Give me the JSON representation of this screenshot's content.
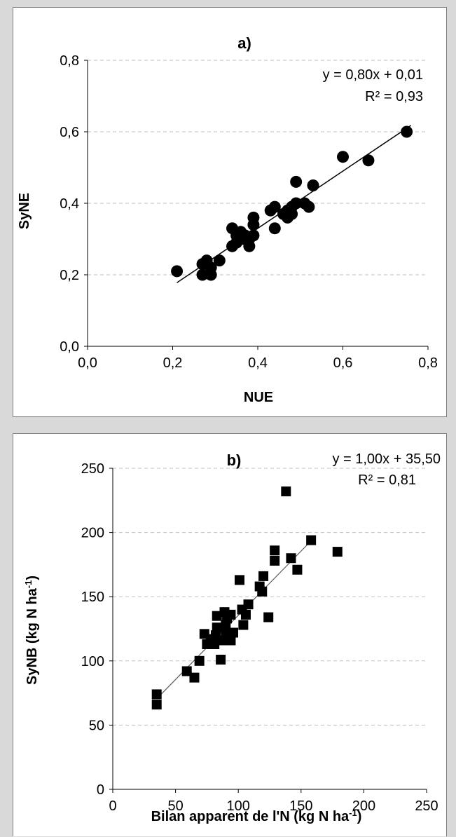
{
  "chart_data": [
    {
      "type": "scatter",
      "title": "a)",
      "xlabel": "NUE",
      "ylabel": "SyNE",
      "xlim": [
        0,
        0.8
      ],
      "ylim": [
        0,
        0.8
      ],
      "xticks": [
        0,
        0.2,
        0.4,
        0.6,
        0.8
      ],
      "yticks": [
        0,
        0.2,
        0.4,
        0.6,
        0.8
      ],
      "xtick_labels": [
        "0,0",
        "0,2",
        "0,4",
        "0,6",
        "0,8"
      ],
      "ytick_labels": [
        "0,0",
        "0,2",
        "0,4",
        "0,6",
        "0,8"
      ],
      "grid": "horizontal dashed",
      "marker": "circle",
      "marker_color": "#000000",
      "trendline": {
        "slope": 0.8,
        "intercept": 0.01,
        "x_range": [
          0.21,
          0.76
        ]
      },
      "equation_text": "y = 0,80x + 0,01",
      "r2_text": "R² = 0,93",
      "points": [
        {
          "x": 0.21,
          "y": 0.21
        },
        {
          "x": 0.27,
          "y": 0.2
        },
        {
          "x": 0.27,
          "y": 0.23
        },
        {
          "x": 0.28,
          "y": 0.24
        },
        {
          "x": 0.29,
          "y": 0.2
        },
        {
          "x": 0.29,
          "y": 0.22
        },
        {
          "x": 0.31,
          "y": 0.24
        },
        {
          "x": 0.34,
          "y": 0.28
        },
        {
          "x": 0.34,
          "y": 0.33
        },
        {
          "x": 0.35,
          "y": 0.29
        },
        {
          "x": 0.35,
          "y": 0.31
        },
        {
          "x": 0.36,
          "y": 0.32
        },
        {
          "x": 0.36,
          "y": 0.3
        },
        {
          "x": 0.37,
          "y": 0.3
        },
        {
          "x": 0.37,
          "y": 0.31
        },
        {
          "x": 0.38,
          "y": 0.28
        },
        {
          "x": 0.38,
          "y": 0.3
        },
        {
          "x": 0.39,
          "y": 0.31
        },
        {
          "x": 0.39,
          "y": 0.34
        },
        {
          "x": 0.39,
          "y": 0.36
        },
        {
          "x": 0.43,
          "y": 0.38
        },
        {
          "x": 0.44,
          "y": 0.33
        },
        {
          "x": 0.44,
          "y": 0.39
        },
        {
          "x": 0.46,
          "y": 0.37
        },
        {
          "x": 0.47,
          "y": 0.36
        },
        {
          "x": 0.47,
          "y": 0.38
        },
        {
          "x": 0.48,
          "y": 0.37
        },
        {
          "x": 0.48,
          "y": 0.39
        },
        {
          "x": 0.49,
          "y": 0.4
        },
        {
          "x": 0.49,
          "y": 0.46
        },
        {
          "x": 0.51,
          "y": 0.4
        },
        {
          "x": 0.52,
          "y": 0.39
        },
        {
          "x": 0.53,
          "y": 0.45
        },
        {
          "x": 0.6,
          "y": 0.53
        },
        {
          "x": 0.66,
          "y": 0.52
        },
        {
          "x": 0.75,
          "y": 0.6
        }
      ]
    },
    {
      "type": "scatter",
      "title": "b)",
      "xlabel": "Bilan apparent de l'N (kg N ha-1)",
      "xlabel_main": "Bilan apparent de l'N (kg N ha",
      "xlabel_sup": "-1",
      "xlabel_end": ")",
      "ylabel": "SyNB (kg N ha-1)",
      "ylabel_main": "SyNB (kg N ha",
      "ylabel_sup": "-1",
      "ylabel_end": ")",
      "xlim": [
        0,
        250
      ],
      "ylim": [
        0,
        250
      ],
      "xticks": [
        0,
        50,
        100,
        150,
        200,
        250
      ],
      "yticks": [
        0,
        50,
        100,
        150,
        200,
        250
      ],
      "xtick_labels": [
        "0",
        "50",
        "100",
        "150",
        "200",
        "250"
      ],
      "ytick_labels": [
        "0",
        "50",
        "100",
        "150",
        "200",
        "250"
      ],
      "grid": "horizontal dashed",
      "marker": "square",
      "marker_color": "#000000",
      "trendline": {
        "slope": 1.0,
        "intercept": 35.5,
        "x_range": [
          35,
          158
        ]
      },
      "equation_text": "y = 1,00x  + 35,50",
      "r2_text": "R² = 0,81",
      "points": [
        {
          "x": 35,
          "y": 66
        },
        {
          "x": 35,
          "y": 74
        },
        {
          "x": 59,
          "y": 92
        },
        {
          "x": 65,
          "y": 87
        },
        {
          "x": 69,
          "y": 100
        },
        {
          "x": 73,
          "y": 121
        },
        {
          "x": 75,
          "y": 113
        },
        {
          "x": 78,
          "y": 115
        },
        {
          "x": 80,
          "y": 117
        },
        {
          "x": 81,
          "y": 113
        },
        {
          "x": 82,
          "y": 120
        },
        {
          "x": 83,
          "y": 126
        },
        {
          "x": 83,
          "y": 135
        },
        {
          "x": 86,
          "y": 101
        },
        {
          "x": 88,
          "y": 116
        },
        {
          "x": 89,
          "y": 138
        },
        {
          "x": 90,
          "y": 122
        },
        {
          "x": 90,
          "y": 128
        },
        {
          "x": 91,
          "y": 133
        },
        {
          "x": 94,
          "y": 116
        },
        {
          "x": 94,
          "y": 136
        },
        {
          "x": 96,
          "y": 122
        },
        {
          "x": 101,
          "y": 163
        },
        {
          "x": 103,
          "y": 140
        },
        {
          "x": 104,
          "y": 128
        },
        {
          "x": 106,
          "y": 136
        },
        {
          "x": 108,
          "y": 144
        },
        {
          "x": 117,
          "y": 158
        },
        {
          "x": 119,
          "y": 154
        },
        {
          "x": 120,
          "y": 166
        },
        {
          "x": 124,
          "y": 134
        },
        {
          "x": 129,
          "y": 178
        },
        {
          "x": 129,
          "y": 186
        },
        {
          "x": 138,
          "y": 232
        },
        {
          "x": 142,
          "y": 180
        },
        {
          "x": 147,
          "y": 171
        },
        {
          "x": 158,
          "y": 194
        },
        {
          "x": 179,
          "y": 185
        }
      ]
    }
  ]
}
